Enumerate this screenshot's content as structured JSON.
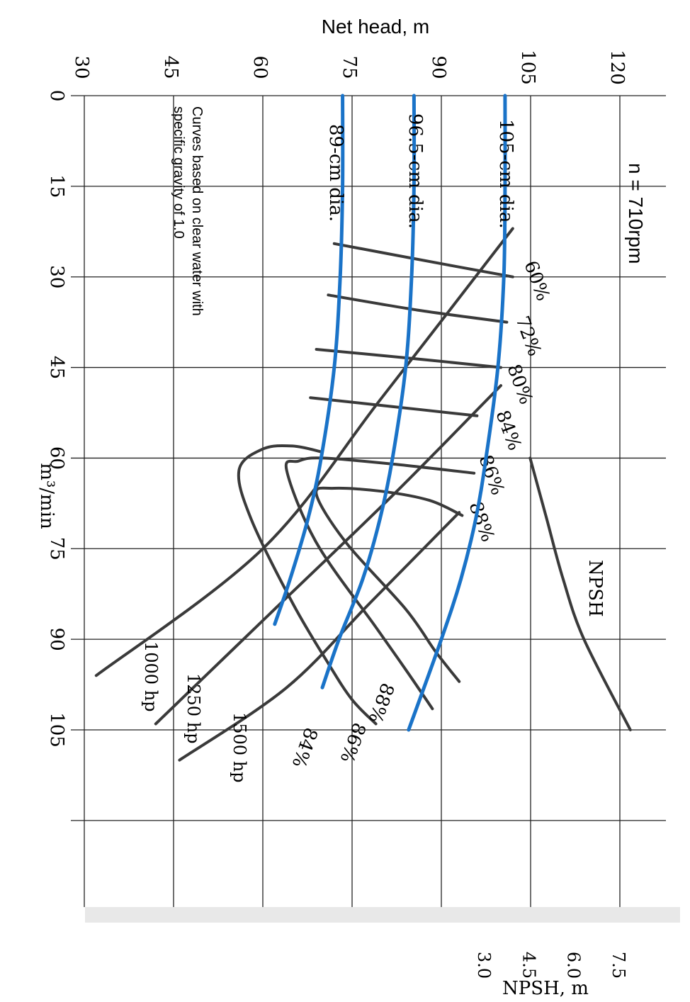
{
  "chart_data": {
    "type": "line",
    "title": "",
    "speed_label": "n =  710rpm",
    "note": "Curves based on clear water with specific gravity of 1.0",
    "xlabel": "m³/min",
    "ylabel": "Net head, m",
    "y2label": "NPSH, m",
    "xlim": [
      0,
      120
    ],
    "ylim": [
      30,
      120
    ],
    "y2lim": [
      0,
      7.5
    ],
    "x_ticks": [
      "0",
      "15",
      "30",
      "45",
      "60",
      "75",
      "90",
      "105"
    ],
    "x_tick_values": [
      0,
      15,
      30,
      45,
      60,
      75,
      90,
      105
    ],
    "y_ticks": [
      "30",
      "45",
      "60",
      "75",
      "90",
      "105",
      "120"
    ],
    "y_tick_values": [
      30,
      45,
      60,
      75,
      90,
      105,
      120
    ],
    "y2_ticks": [
      "3.0",
      "4.5",
      "6.0",
      "7.5"
    ],
    "y2_tick_values": [
      3.0,
      4.5,
      6.0,
      7.5
    ],
    "grid": true,
    "diameter_curves": [
      {
        "name": "105-cm dia.",
        "color": "#1a73c8",
        "x": [
          0,
          15,
          30,
          45,
          60,
          70,
          80,
          90,
          105
        ],
        "y": [
          100.7,
          100.7,
          100.5,
          99.5,
          97.5,
          95.8,
          93.3,
          90.0,
          84.5
        ]
      },
      {
        "name": "96.5-cm dia.",
        "color": "#1a73c8",
        "x": [
          0,
          15,
          30,
          45,
          60,
          70,
          80,
          90,
          98
        ],
        "y": [
          85.4,
          85.4,
          85.0,
          84.0,
          81.8,
          79.7,
          76.8,
          72.8,
          70.0
        ]
      },
      {
        "name": "89-cm dia.",
        "color": "#1a73c8",
        "x": [
          0,
          15,
          30,
          45,
          60,
          70,
          80,
          87.5
        ],
        "y": [
          73.4,
          73.4,
          73.0,
          72.0,
          69.8,
          67.6,
          64.6,
          62.0
        ]
      }
    ],
    "efficiency_curves": [
      {
        "name": "60%",
        "x": [
          24.5,
          28,
          30
        ],
        "y": [
          72.0,
          91.0,
          102.0
        ]
      },
      {
        "name": "72%",
        "x": [
          33,
          35.5,
          37.5
        ],
        "y": [
          71.0,
          86.0,
          101.0
        ]
      },
      {
        "name": "80%",
        "x": [
          42,
          43.5,
          45
        ],
        "y": [
          69.0,
          85.0,
          100.0
        ]
      },
      {
        "name": "84%",
        "x": [
          50,
          51.5,
          53
        ],
        "y": [
          68.0,
          82.0,
          96.0
        ]
      },
      {
        "name": "86%",
        "x": [
          101.5,
          95,
          88,
          74,
          62,
          60.5,
          60,
          61,
          62.5
        ],
        "y": [
          88.5,
          84.0,
          79.0,
          69.0,
          64.0,
          66.0,
          70.0,
          82.0,
          95.5
        ]
      },
      {
        "name": "88%",
        "x": [
          97,
          92,
          85,
          74,
          66,
          65,
          65.5,
          67,
          69.5
        ],
        "y": [
          93.0,
          89.0,
          84.0,
          74.0,
          69.0,
          72.0,
          80.0,
          88.0,
          93.5
        ]
      },
      {
        "name": "84%",
        "x": [
          104,
          100,
          94,
          84,
          70,
          62,
          58.5,
          58,
          59
        ],
        "y": [
          79.0,
          75.0,
          71.0,
          65.0,
          58.0,
          56.0,
          60.0,
          65.0,
          70.0
        ]
      }
    ],
    "efficiency_labels": [
      "60%",
      "72%",
      "80%",
      "84%",
      "86%",
      "88%",
      "88%",
      "86%",
      "84%"
    ],
    "power_curves": [
      {
        "name": "1000  hp",
        "x": [
          22,
          50,
          75,
          96
        ],
        "y": [
          102,
          80,
          60,
          32
        ]
      },
      {
        "name": "1250  hp",
        "x": [
          48,
          66,
          85,
          104
        ],
        "y": [
          100,
          82,
          62,
          42
        ]
      },
      {
        "name": "1500  hp",
        "x": [
          69,
          84,
          98,
          110
        ],
        "y": [
          93,
          78,
          64,
          46
        ]
      }
    ],
    "npsh_curve": {
      "name": "NPSH",
      "x": [
        60,
        70,
        80,
        90,
        105
      ],
      "y": [
        4.5,
        5.05,
        5.6,
        6.3,
        7.85
      ]
    }
  }
}
